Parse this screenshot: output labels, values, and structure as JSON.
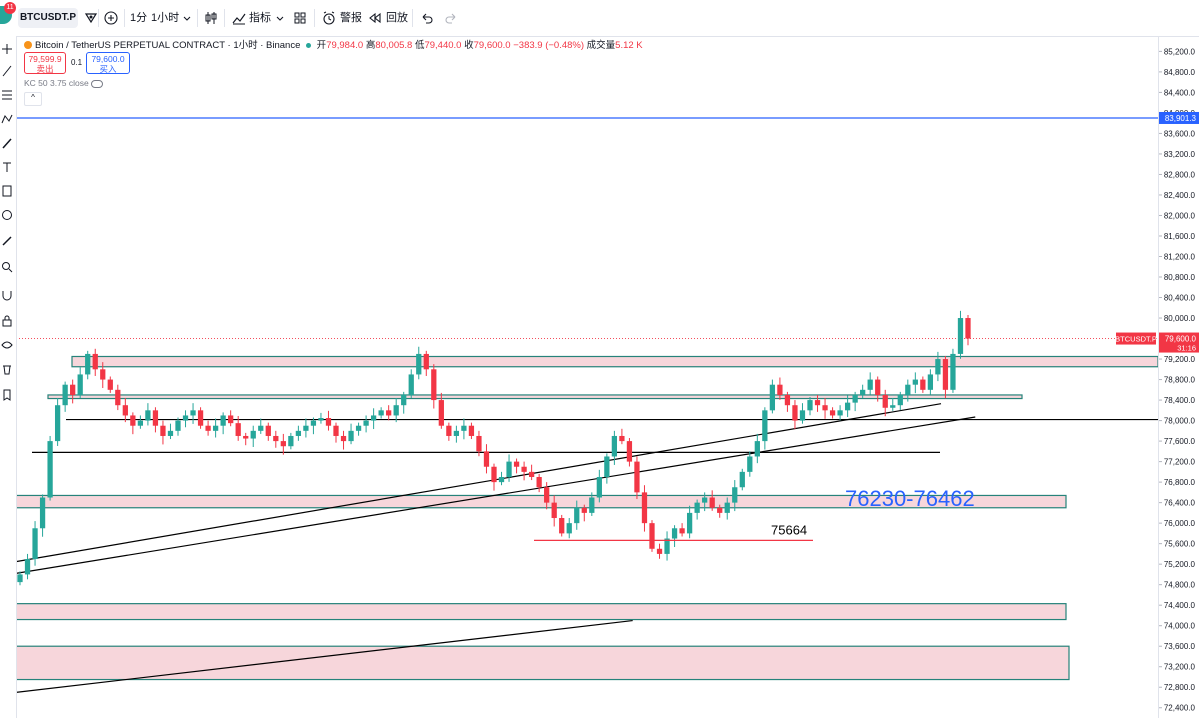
{
  "toolbar": {
    "notification_count": "11",
    "symbol": "BTCUSDT.P",
    "interval_1": "1分",
    "interval_2": "1小时",
    "indicators_label": "指标",
    "alert_label": "警报",
    "replay_label": "回放"
  },
  "legend": {
    "title": "Bitcoin / TetherUS PERPETUAL CONTRACT · 1小时 · Binance",
    "open_label": "开",
    "open": "79,984.0",
    "high_label": "高",
    "high": "80,005.8",
    "low_label": "低",
    "low": "79,440.0",
    "close_label": "收",
    "close": "79,600.0",
    "change": "−383.9 (−0.48%)",
    "volume_label": "成交量",
    "volume": "5.12 K",
    "sell_price": "79,599.9",
    "sell_label": "卖出",
    "spread": "0.1",
    "buy_price": "79,600.0",
    "buy_label": "买入",
    "indicator": "KC 50 3.75 close"
  },
  "chart_data": {
    "type": "candlestick",
    "symbol": "BTCUSDT.P",
    "timeframe": "1h",
    "y_ticks": [
      85200,
      84800,
      84400,
      84000,
      83600,
      83200,
      82800,
      82400,
      82000,
      81600,
      81200,
      80800,
      80400,
      80000,
      79600,
      79200,
      78800,
      78400,
      78000,
      77600,
      77200,
      76800,
      76400,
      76000,
      75600,
      75200,
      74800,
      74400,
      74000,
      73600,
      73200,
      72800,
      72400
    ],
    "ylim": [
      72200,
      85500
    ],
    "tick_labels": [
      "85,200.0",
      "84,800.0",
      "84,400.0",
      "84,000.0",
      "83,600.0",
      "83,200.0",
      "82,800.0",
      "82,400.0",
      "82,000.0",
      "81,600.0",
      "81,200.0",
      "80,800.0",
      "80,400.0",
      "80,000.0",
      "79,600.0",
      "79,200.0",
      "78,800.0",
      "78,400.0",
      "78,000.0",
      "77,600.0",
      "77,200.0",
      "76,800.0",
      "76,400.0",
      "76,000.0",
      "75,600.0",
      "75,200.0",
      "74,800.0",
      "74,400.0",
      "74,000.0",
      "73,600.0",
      "73,200.0",
      "72,800.0",
      "72,400.0"
    ],
    "last_price": 79600,
    "last_price_label": "79,600.0",
    "countdown": "31:16",
    "alert_price": 83901.3,
    "alert_price_label": "83,901.3",
    "candles_close": [
      75000,
      75300,
      75900,
      76500,
      77600,
      78300,
      78700,
      78500,
      78900,
      79300,
      79000,
      78800,
      78600,
      78300,
      78100,
      77900,
      78000,
      78200,
      77900,
      77700,
      77800,
      78000,
      78100,
      78200,
      77900,
      77800,
      77900,
      78100,
      77950,
      77700,
      77650,
      77800,
      77900,
      77700,
      77600,
      77500,
      77700,
      77800,
      77900,
      78000,
      78050,
      77900,
      77700,
      77600,
      77800,
      77900,
      78000,
      78100,
      78200,
      78100,
      78300,
      78500,
      78900,
      79300,
      79000,
      78400,
      77900,
      77700,
      77800,
      77900,
      77700,
      77400,
      77100,
      76800,
      76900,
      77200,
      77100,
      77000,
      76900,
      76700,
      76400,
      76100,
      75800,
      76000,
      76300,
      76200,
      76500,
      76900,
      77300,
      77700,
      77600,
      77200,
      76600,
      76000,
      75500,
      75400,
      75700,
      75900,
      75800,
      76200,
      76400,
      76500,
      76300,
      76200,
      76400,
      76700,
      77000,
      77300,
      77600,
      78200,
      78700,
      78500,
      78300,
      78000,
      78200,
      78400,
      78300,
      78200,
      78100,
      78200,
      78350,
      78500,
      78600,
      78800,
      78500,
      78250,
      78300,
      78500,
      78700,
      78800,
      78600,
      78900,
      79200,
      78600,
      79300,
      80000,
      79600
    ],
    "zones": [
      {
        "low": 79050,
        "high": 79250
      },
      {
        "low": 78430,
        "high": 78500
      },
      {
        "low": 76300,
        "high": 76540
      },
      {
        "low": 74120,
        "high": 74430
      },
      {
        "low": 72950,
        "high": 73600
      }
    ],
    "horizontal_lines": [
      {
        "price": 78020,
        "label": ""
      },
      {
        "price": 77380,
        "label": ""
      }
    ],
    "support_level": {
      "price": 75664,
      "label": "75664"
    },
    "zone_annotation": "76230-76462",
    "trendlines": [
      {
        "from": [
          0,
          75250
        ],
        "to": [
          0.81,
          78330
        ]
      },
      {
        "from": [
          0,
          75020
        ],
        "to": [
          0.84,
          78070
        ]
      },
      {
        "from": [
          0,
          72700
        ],
        "to": [
          0.54,
          74100
        ]
      }
    ]
  }
}
